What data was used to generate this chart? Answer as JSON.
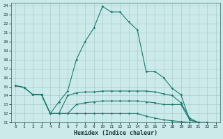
{
  "xlabel": "Humidex (Indice chaleur)",
  "bg_color": "#cceaea",
  "grid_color": "#aacccc",
  "line_color": "#1a7a6e",
  "xlim": [
    -0.5,
    23.5
  ],
  "ylim": [
    11,
    24.3
  ],
  "x_ticks": [
    0,
    1,
    2,
    3,
    4,
    5,
    6,
    7,
    8,
    9,
    10,
    11,
    12,
    13,
    14,
    15,
    16,
    17,
    18,
    19,
    20,
    21,
    22,
    23
  ],
  "y_ticks": [
    11,
    12,
    13,
    14,
    15,
    16,
    17,
    18,
    19,
    20,
    21,
    22,
    23,
    24
  ],
  "line1_x": [
    0,
    1,
    2,
    3,
    4,
    5,
    6,
    7,
    8,
    9,
    10,
    11,
    12,
    13,
    14,
    15,
    16,
    17,
    18,
    19,
    20,
    21,
    22,
    23
  ],
  "line1_y": [
    15.1,
    14.9,
    14.1,
    14.1,
    12.0,
    13.3,
    14.5,
    18.0,
    20.0,
    21.5,
    23.9,
    23.3,
    23.3,
    22.2,
    21.3,
    16.7,
    16.7,
    16.0,
    14.8,
    14.1,
    11.3,
    11.0,
    10.9,
    10.9
  ],
  "line2_x": [
    0,
    1,
    2,
    3,
    4,
    5,
    6,
    7,
    8,
    9,
    10,
    11,
    12,
    13,
    14,
    15,
    16,
    17,
    18,
    19,
    20,
    21,
    22,
    23
  ],
  "line2_y": [
    15.1,
    14.9,
    14.1,
    14.1,
    12.0,
    12.0,
    14.0,
    14.3,
    14.4,
    14.4,
    14.5,
    14.5,
    14.5,
    14.5,
    14.5,
    14.5,
    14.4,
    14.2,
    14.0,
    13.2,
    11.5,
    11.0,
    11.0,
    10.9
  ],
  "line3_x": [
    0,
    1,
    2,
    3,
    4,
    5,
    6,
    7,
    8,
    9,
    10,
    11,
    12,
    13,
    14,
    15,
    16,
    17,
    18,
    19,
    20,
    21,
    22,
    23
  ],
  "line3_y": [
    15.1,
    14.9,
    14.1,
    14.1,
    12.0,
    12.0,
    12.0,
    13.0,
    13.2,
    13.3,
    13.4,
    13.4,
    13.4,
    13.4,
    13.4,
    13.3,
    13.2,
    13.0,
    13.0,
    13.0,
    11.3,
    11.0,
    11.0,
    10.9
  ],
  "line4_x": [
    2,
    3,
    4,
    5,
    6,
    7,
    8,
    9,
    10,
    11,
    12,
    13,
    14,
    15,
    16,
    17,
    18,
    19,
    20,
    21,
    22,
    23
  ],
  "line4_y": [
    14.1,
    14.1,
    12.0,
    12.0,
    12.0,
    12.0,
    12.0,
    12.0,
    12.0,
    12.0,
    12.0,
    12.0,
    12.0,
    11.7,
    11.5,
    11.3,
    11.2,
    11.1,
    11.0,
    11.0,
    10.9,
    10.9
  ]
}
